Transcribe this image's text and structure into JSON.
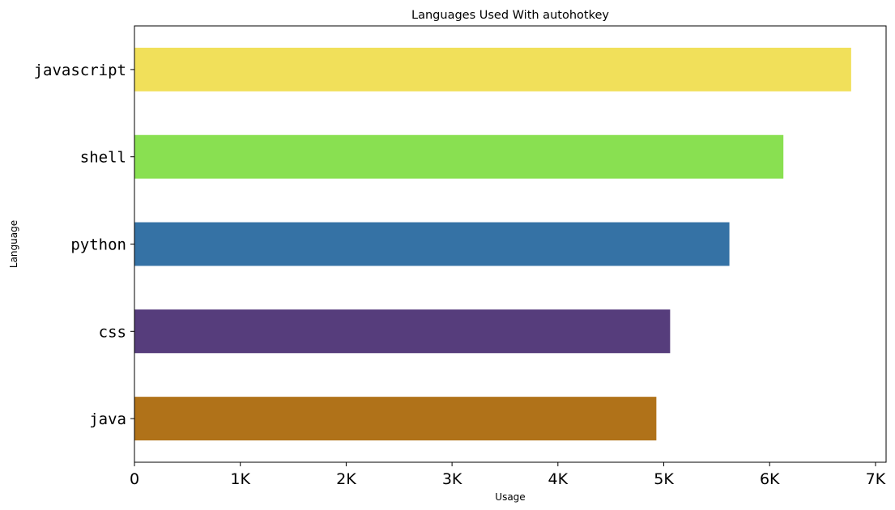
{
  "chart_data": {
    "type": "bar",
    "orientation": "horizontal",
    "title": "Languages Used With autohotkey",
    "xlabel": "Usage",
    "ylabel": "Language",
    "categories": [
      "javascript",
      "shell",
      "python",
      "css",
      "java"
    ],
    "values": [
      6770,
      6130,
      5620,
      5060,
      4930
    ],
    "colors": [
      "#f1e05a",
      "#89e051",
      "#3572a5",
      "#563d7c",
      "#b07219"
    ],
    "xlim": [
      0,
      7100
    ],
    "x_ticks": [
      0,
      1000,
      2000,
      3000,
      4000,
      5000,
      6000,
      7000
    ],
    "x_tick_labels": [
      "0",
      "1K",
      "2K",
      "3K",
      "4K",
      "5K",
      "6K",
      "7K"
    ],
    "grid": false,
    "legend": "none"
  }
}
